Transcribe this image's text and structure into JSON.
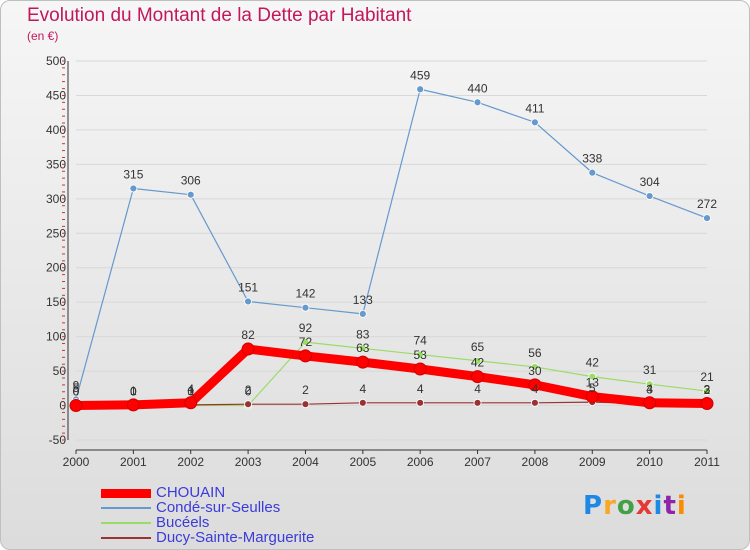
{
  "title": "Evolution du Montant de la Dette par Habitant",
  "subtitle": "(en €)",
  "logo_text": "Proxiti",
  "chart_data": {
    "type": "line",
    "title": "Evolution du Montant de la Dette par Habitant",
    "ylabel": "(en €)",
    "xlabel": "",
    "ylim": [
      -50,
      500
    ],
    "yticks": [
      "-50",
      "0",
      "50",
      "100",
      "150",
      "200",
      "250",
      "300",
      "350",
      "400",
      "450",
      "500"
    ],
    "categories": [
      "2000",
      "2001",
      "2002",
      "2003",
      "2004",
      "2005",
      "2006",
      "2007",
      "2008",
      "2009",
      "2010",
      "2011"
    ],
    "series": [
      {
        "name": "CHOUAIN",
        "color": "#ff0000",
        "values": [
          0,
          1,
          4,
          82,
          72,
          63,
          53,
          42,
          30,
          13,
          4,
          3
        ],
        "labels": [
          "0",
          "1",
          "4",
          "82",
          "72",
          "63",
          "53",
          "42",
          "30",
          "13",
          "4",
          "3"
        ]
      },
      {
        "name": "Condé-sur-Seulles",
        "color": "#6699cc",
        "values": [
          9,
          315,
          306,
          151,
          142,
          133,
          459,
          440,
          411,
          338,
          304,
          272
        ],
        "labels": [
          "9",
          "315",
          "306",
          "151",
          "142",
          "133",
          "459",
          "440",
          "411",
          "338",
          "304",
          "272"
        ]
      },
      {
        "name": "Bucéels",
        "color": "#99dd66",
        "values": [
          0,
          0,
          0,
          0,
          92,
          83,
          74,
          65,
          56,
          42,
          31,
          21
        ],
        "labels": [
          "0",
          "0",
          "0",
          "0",
          "92",
          "83",
          "74",
          "65",
          "56",
          "42",
          "31",
          "21"
        ]
      },
      {
        "name": "Ducy-Sainte-Marguerite",
        "color": "#993333",
        "values": [
          5,
          0,
          1,
          2,
          2,
          4,
          4,
          4,
          4,
          5,
          3,
          2
        ],
        "labels": [
          "5",
          "0",
          "1",
          "2",
          "2",
          "4",
          "4",
          "4",
          "4",
          "5",
          "3",
          "2"
        ]
      }
    ]
  }
}
